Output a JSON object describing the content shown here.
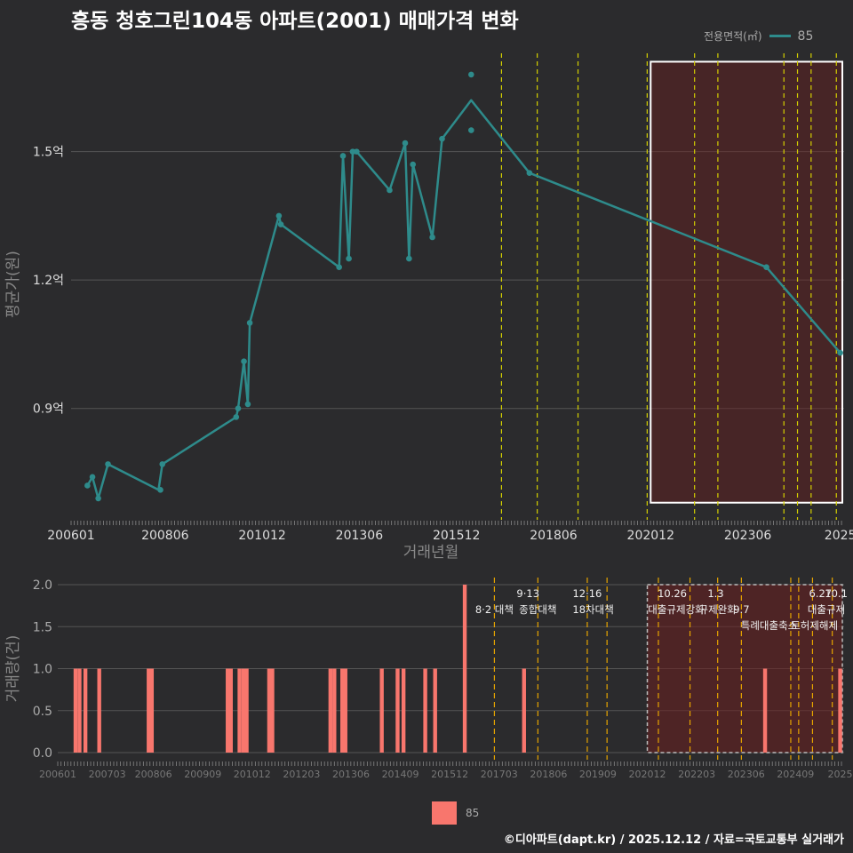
{
  "chart_data": [
    {
      "type": "line",
      "title": "흥동 청호그린104동 아파트(2001) 매매가격 변화",
      "xlabel": "거래년월",
      "ylabel": "평균가(원)",
      "xlim": [
        2006.0,
        2025.9
      ],
      "ylim": [
        0.64,
        1.74
      ],
      "yticks": [
        0.9,
        1.2,
        1.5
      ],
      "ytick_labels": [
        "0.9억",
        "1.2억",
        "1.5억"
      ],
      "xticks": [
        {
          "t": 2006.0,
          "label": "200601"
        },
        {
          "t": 2008.42,
          "label": "200806"
        },
        {
          "t": 2010.92,
          "label": "201012"
        },
        {
          "t": 2013.42,
          "label": "201306"
        },
        {
          "t": 2015.92,
          "label": "201512"
        },
        {
          "t": 2018.42,
          "label": "201806"
        },
        {
          "t": 2020.92,
          "label": "202012"
        },
        {
          "t": 2023.42,
          "label": "202306"
        },
        {
          "t": 2025.8,
          "label": "2025"
        }
      ],
      "legend_title": "전용면적(㎡)",
      "series": [
        {
          "name": "85",
          "color": "#2e8b8b",
          "line_t": [
            2006.42,
            2006.55,
            2006.7,
            2006.95,
            2008.25,
            2008.35,
            2010.25,
            2010.3,
            2010.45,
            2010.55,
            2010.6,
            2011.35,
            2011.4,
            2012.9,
            2013.0,
            2013.15,
            2013.25,
            2013.35,
            2014.2,
            2014.6,
            2014.7,
            2014.8,
            2015.3,
            2015.55,
            2016.3,
            2017.8,
            2023.9,
            2025.8
          ],
          "line_y": [
            0.72,
            0.74,
            0.69,
            0.77,
            0.71,
            0.77,
            0.88,
            0.9,
            1.01,
            0.91,
            1.1,
            1.35,
            1.33,
            1.23,
            1.49,
            1.25,
            1.5,
            1.5,
            1.41,
            1.52,
            1.25,
            1.47,
            1.3,
            1.53,
            1.62,
            1.45,
            1.23,
            1.03
          ],
          "points_t": [
            2006.42,
            2006.55,
            2006.7,
            2006.95,
            2008.3,
            2008.35,
            2010.25,
            2010.3,
            2010.45,
            2010.55,
            2010.6,
            2011.35,
            2011.4,
            2012.9,
            2013.0,
            2013.15,
            2013.25,
            2013.35,
            2014.2,
            2014.6,
            2014.7,
            2014.8,
            2015.3,
            2015.55,
            2016.3,
            2016.3,
            2017.8,
            2023.9,
            2025.8
          ],
          "points_y": [
            0.72,
            0.74,
            0.69,
            0.77,
            0.71,
            0.77,
            0.88,
            0.9,
            1.01,
            0.91,
            1.1,
            1.35,
            1.33,
            1.23,
            1.49,
            1.25,
            1.5,
            1.5,
            1.41,
            1.52,
            1.25,
            1.47,
            1.3,
            1.53,
            1.68,
            1.55,
            1.45,
            1.23,
            1.03
          ]
        }
      ],
      "policy_lines_t": [
        2017.08,
        2018.0,
        2019.05,
        2020.83,
        2022.05,
        2022.65,
        2024.35,
        2024.7,
        2025.05,
        2025.7
      ],
      "highlight_range_t": [
        2020.92,
        2025.9
      ]
    },
    {
      "type": "bar",
      "xlabel": "",
      "ylabel": "거래량(건)",
      "ylim": [
        0,
        2.0
      ],
      "yticks": [
        0.0,
        0.5,
        1.0,
        1.5,
        2.0
      ],
      "ytick_labels": [
        "0.0",
        "0.5",
        "1.0",
        "1.5",
        "2.0"
      ],
      "xticks": [
        {
          "t": 2006.0,
          "label": "200601"
        },
        {
          "t": 2007.25,
          "label": "200703"
        },
        {
          "t": 2008.42,
          "label": "200806"
        },
        {
          "t": 2009.67,
          "label": "200909"
        },
        {
          "t": 2010.92,
          "label": "201012"
        },
        {
          "t": 2012.17,
          "label": "201203"
        },
        {
          "t": 2013.42,
          "label": "201306"
        },
        {
          "t": 2014.67,
          "label": "201409"
        },
        {
          "t": 2015.92,
          "label": "201512"
        },
        {
          "t": 2017.17,
          "label": "201703"
        },
        {
          "t": 2018.42,
          "label": "201806"
        },
        {
          "t": 2019.67,
          "label": "201909"
        },
        {
          "t": 2020.92,
          "label": "202012"
        },
        {
          "t": 2022.17,
          "label": "202203"
        },
        {
          "t": 2023.42,
          "label": "202306"
        },
        {
          "t": 2024.67,
          "label": "202409"
        },
        {
          "t": 2025.8,
          "label": "2025"
        }
      ],
      "series": [
        {
          "name": "85",
          "color": "#f8766d",
          "t": [
            2006.45,
            2006.55,
            2006.7,
            2007.05,
            2008.3,
            2008.38,
            2010.3,
            2010.38,
            2010.6,
            2010.7,
            2010.78,
            2011.35,
            2011.43,
            2012.9,
            2013.0,
            2013.2,
            2013.28,
            2014.2,
            2014.6,
            2014.75,
            2015.3,
            2015.55,
            2016.3,
            2017.8,
            2023.9,
            2025.8
          ],
          "values": [
            1,
            1,
            1,
            1,
            1,
            1,
            1,
            1,
            1,
            1,
            1,
            1,
            1,
            1,
            1,
            1,
            1,
            1,
            1,
            1,
            1,
            1,
            2,
            1,
            1,
            1
          ]
        }
      ],
      "policy_lines_t": [
        2017.05,
        2018.15,
        2019.4,
        2019.9,
        2021.2,
        2022.0,
        2022.7,
        2023.3,
        2024.55,
        2024.75,
        2025.1,
        2025.6
      ],
      "highlight_range_t": [
        2020.92,
        2025.9
      ],
      "annotations": [
        {
          "t": 2017.05,
          "row": 1,
          "text": "8·2 대책"
        },
        {
          "t": 2017.9,
          "row": 0,
          "text": "9·13"
        },
        {
          "t": 2018.15,
          "row": 1,
          "text": "종합대책"
        },
        {
          "t": 2019.4,
          "row": 0,
          "text": "12·16"
        },
        {
          "t": 2019.55,
          "row": 1,
          "text": "18차대책"
        },
        {
          "t": 2021.55,
          "row": 0,
          "text": "10.26"
        },
        {
          "t": 2021.65,
          "row": 1,
          "text": "대출규제강화"
        },
        {
          "t": 2022.65,
          "row": 0,
          "text": "1.3"
        },
        {
          "t": 2022.7,
          "row": 1,
          "text": "규제완화"
        },
        {
          "t": 2023.3,
          "row": 1,
          "text": "9.7"
        },
        {
          "t": 2024.0,
          "row": 2,
          "text": "특례대출축소"
        },
        {
          "t": 2025.15,
          "row": 2,
          "text": "토허제해제"
        },
        {
          "t": 2025.3,
          "row": 0,
          "text": "6.27"
        },
        {
          "t": 2025.7,
          "row": 0,
          "text": "10.1"
        },
        {
          "t": 2025.45,
          "row": 1,
          "text": "대출규제"
        }
      ]
    }
  ],
  "legend": {
    "title": "전용면적(㎡)",
    "label": "85"
  },
  "caption": "©디아파트(dapt.kr) / 2025.12.12 / 자료=국토교통부 실거래가"
}
